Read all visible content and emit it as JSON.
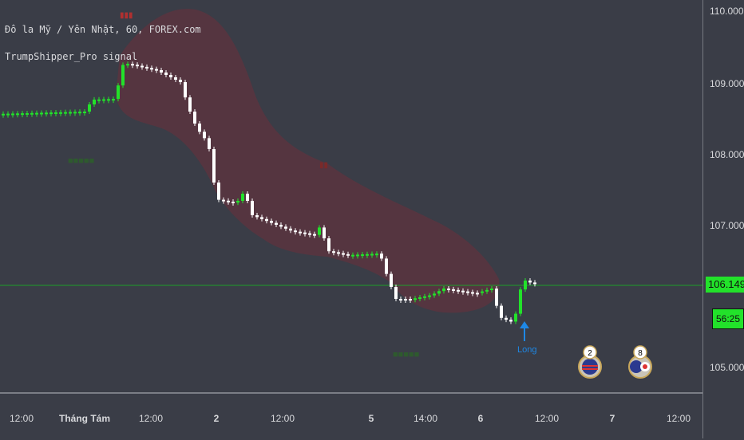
{
  "legend": {
    "symbol_line": "Đô la Mỹ / Yên Nhật, 60, FOREX.com",
    "indicator_line": "TrumpShipper_Pro signal"
  },
  "price_axis": {
    "ticks": [
      "110.000",
      "109.000",
      "108.000",
      "107.000",
      "105.000"
    ],
    "current_price": "106.149",
    "countdown": "56:25"
  },
  "time_axis": {
    "ticks": [
      "12:00",
      "Tháng Tám",
      "12:00",
      "2",
      "12:00",
      "5",
      "14:00",
      "6",
      "12:00",
      "7",
      "12:00"
    ]
  },
  "signals": {
    "long_label": "Long"
  },
  "events": [
    {
      "count": "2"
    },
    {
      "count": "8"
    }
  ],
  "colors": {
    "background": "#3a3d47",
    "up_candle": "#22e22a",
    "down_candle": "#ffffff",
    "cloud": "#6b2f3a",
    "price_line": "#1f9e2a",
    "long_signal": "#1e88e5"
  }
}
